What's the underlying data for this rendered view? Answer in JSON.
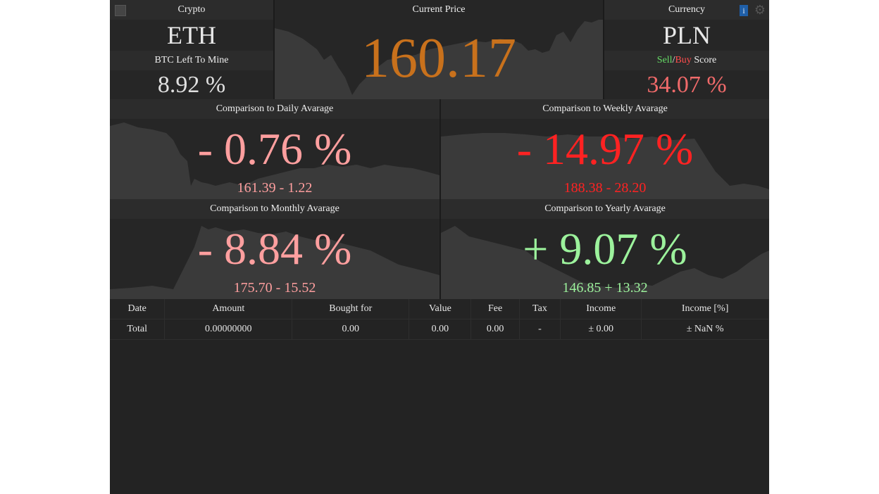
{
  "top": {
    "crypto_label": "Crypto",
    "crypto_value": "ETH",
    "btc_label": "BTC Left To Mine",
    "btc_value": "8.92 %",
    "price_label": "Current Price",
    "price_value": "160.17",
    "currency_label": "Currency",
    "currency_value": "PLN",
    "score_sell": "Sell",
    "score_sep": "/",
    "score_buy": "Buy",
    "score_word": "Score",
    "score_value": "34.07 %"
  },
  "comparisons": {
    "daily": {
      "label": "Comparison to Daily Avarage",
      "percent": "- 0.76 %",
      "detail": "161.39 - 1.22"
    },
    "weekly": {
      "label": "Comparison to Weekly Avarage",
      "percent": "- 14.97 %",
      "detail": "188.38 - 28.20"
    },
    "monthly": {
      "label": "Comparison to Monthly Avarage",
      "percent": "- 8.84 %",
      "detail": "175.70 - 15.52"
    },
    "yearly": {
      "label": "Comparison to Yearly Avarage",
      "percent": "+ 9.07 %",
      "detail": "146.85 + 13.32"
    }
  },
  "table": {
    "headers": [
      "Date",
      "Amount",
      "Bought for",
      "Value",
      "Fee",
      "Tax",
      "Income",
      "Income [%]"
    ],
    "total_row": [
      "Total",
      "0.00000000",
      "0.00",
      "0.00",
      "0.00",
      "-",
      "± 0.00",
      "± NaN %"
    ]
  },
  "icons": {
    "top_left": "square-icon",
    "info": "info-icon",
    "settings": "gear-icon"
  },
  "colors": {
    "price": "#c8711c",
    "light_red": "#ff9f9f",
    "red": "#ff2222",
    "green": "#9cf29c",
    "score": "#f06a6a",
    "sell": "#66dd66",
    "buy": "#ff4d4d",
    "info": "#1f5fa8"
  }
}
